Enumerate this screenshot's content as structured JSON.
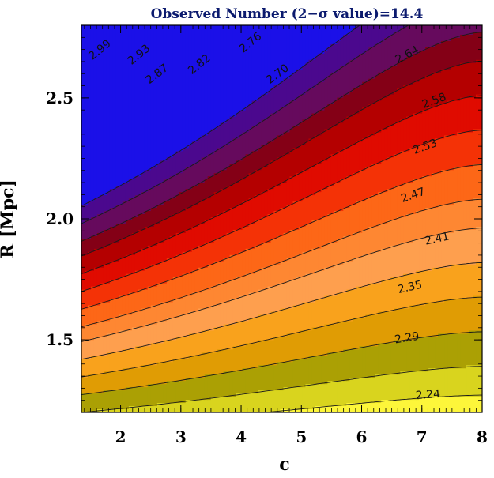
{
  "chart_data": {
    "type": "contour",
    "title": "Observed Number (2−σ value)=14.4",
    "xlabel": "c",
    "ylabel": "R [Mpc]",
    "xlim": [
      1.35,
      8.0
    ],
    "ylim": [
      1.2,
      2.8
    ],
    "x_ticks": [
      2,
      3,
      4,
      5,
      6,
      7,
      8
    ],
    "x_tick_labels": [
      "2",
      "3",
      "4",
      "5",
      "6",
      "7",
      "8"
    ],
    "y_ticks": [
      1.5,
      2.0,
      2.5
    ],
    "y_tick_labels": [
      "1.5",
      "2.0",
      "2.5"
    ],
    "contour_levels": [
      2.24,
      2.29,
      2.35,
      2.41,
      2.47,
      2.53,
      2.58,
      2.64,
      2.7,
      2.76,
      2.82,
      2.87,
      2.93,
      2.99
    ],
    "contour_labels": [
      {
        "text": "2.24",
        "x": 7.1,
        "y": 1.275
      },
      {
        "text": "2.29",
        "x": 6.75,
        "y": 1.51
      },
      {
        "text": "2.35",
        "x": 6.8,
        "y": 1.72
      },
      {
        "text": "2.41",
        "x": 7.25,
        "y": 1.92
      },
      {
        "text": "2.47",
        "x": 6.85,
        "y": 2.1
      },
      {
        "text": "2.53",
        "x": 7.05,
        "y": 2.3
      },
      {
        "text": "2.58",
        "x": 7.2,
        "y": 2.49
      },
      {
        "text": "2.64",
        "x": 6.75,
        "y": 2.68
      },
      {
        "text": "2.70",
        "x": 4.6,
        "y": 2.6
      },
      {
        "text": "2.76",
        "x": 4.15,
        "y": 2.73
      },
      {
        "text": "2.82",
        "x": 3.3,
        "y": 2.64
      },
      {
        "text": "2.87",
        "x": 2.6,
        "y": 2.6
      },
      {
        "text": "2.93",
        "x": 2.3,
        "y": 2.68
      },
      {
        "text": "2.99",
        "x": 1.65,
        "y": 2.7
      }
    ],
    "fill_colors": [
      "#fdf63a",
      "#d9d41e",
      "#aba004",
      "#e09c04",
      "#f9a21c",
      "#fe9f4e",
      "#fe8732",
      "#fd6717",
      "#f43206",
      "#e00b00",
      "#b40000",
      "#840016",
      "#660a5d",
      "#4b088e",
      "#1b10e8"
    ],
    "grid": false,
    "legend": "none"
  }
}
